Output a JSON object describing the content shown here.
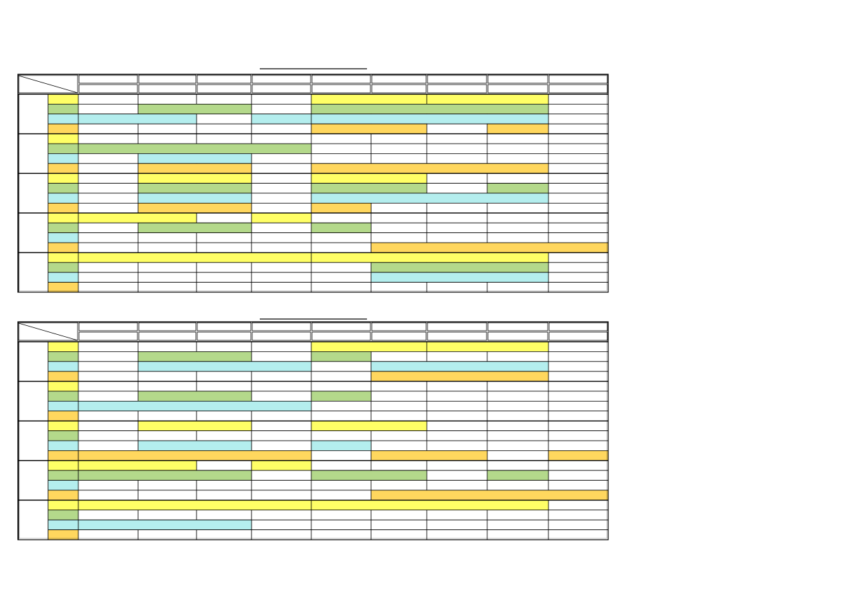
{
  "row_colors": [
    "#ffff66",
    "#b4d98b",
    "#b4eeee",
    "#ffd75e"
  ]
}
